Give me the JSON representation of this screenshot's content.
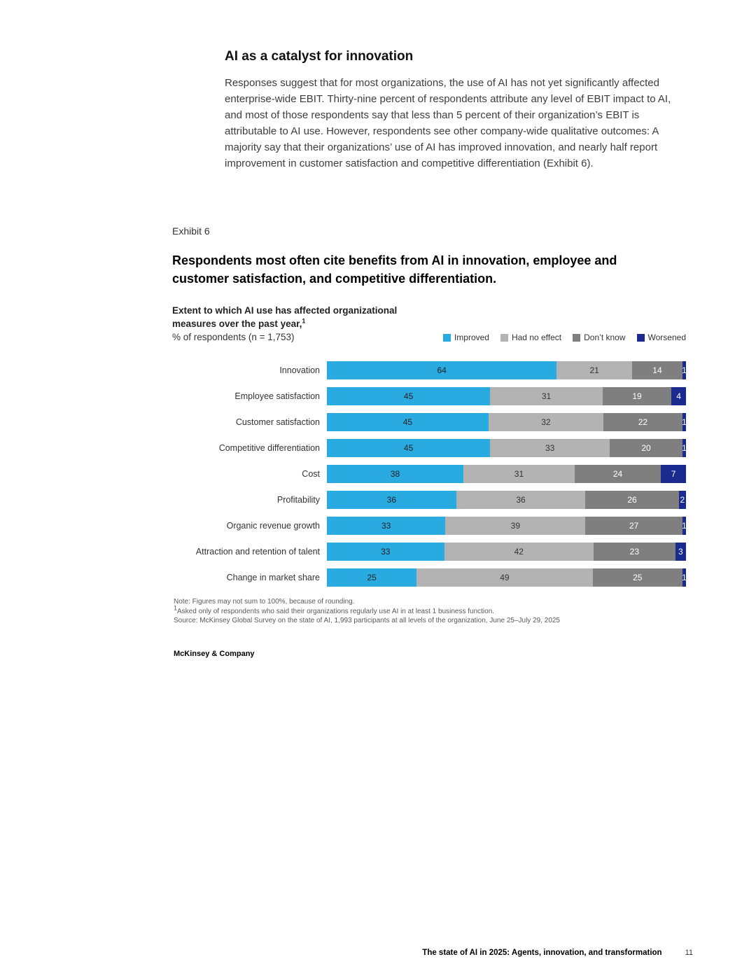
{
  "page": {
    "section_heading": "AI as a catalyst for innovation",
    "paragraph": "Responses suggest that for most organizations, the use of AI has not yet significantly affected enterprise-wide EBIT. Thirty-nine percent of respondents attribute any level of EBIT impact to AI, and most of those respondents say that less than 5 percent of their organization’s EBIT is attributable to AI use. However, respondents see other company-wide qualitative outcomes: A majority say that their organizations’ use of AI has improved innovation, and nearly half report improvement in customer satisfaction and competitive differentiation (Exhibit 6).",
    "footer": {
      "title": "The state of AI in 2025: Agents, innovation, and transformation",
      "page_number": "11"
    }
  },
  "exhibit": {
    "label": "Exhibit 6",
    "title": "Respondents most often cite benefits from AI in innovation, employee and customer satisfaction, and competitive differentiation.",
    "subtitle": "Extent to which AI use has affected organizational measures over the past year,",
    "subtitle_superscript": "1",
    "unit_line": "% of respondents (n = 1,753)",
    "note": "Note: Figures may not sum to 100%, because of rounding.",
    "footnote_superscript": "1",
    "footnote": "Asked only of respondents who said their organizations regularly use AI in at least 1 business function.",
    "source": "Source: McKinsey Global Survey on the state of AI, 1,993 participants at all levels of the organization, June 25–July 29, 2025",
    "brand": "McKinsey & Company"
  },
  "chart_data": {
    "type": "bar",
    "orientation": "horizontal",
    "stacked": true,
    "title": "Extent to which AI use has affected organizational measures over the past year",
    "unit": "% of respondents (n = 1,753)",
    "xlim": [
      0,
      100
    ],
    "legend_position": "top-right",
    "value_labels": true,
    "categories": [
      "Innovation",
      "Employee satisfaction",
      "Customer satisfaction",
      "Competitive differentiation",
      "Cost",
      "Profitability",
      "Organic revenue growth",
      "Attraction and retention of talent",
      "Change in market share"
    ],
    "series": [
      {
        "name": "Improved",
        "color": "#29ABE2",
        "label_color": "#222222",
        "values": [
          64,
          45,
          45,
          45,
          38,
          36,
          33,
          33,
          25
        ]
      },
      {
        "name": "Had no effect",
        "color": "#B3B3B3",
        "label_color": "#333333",
        "values": [
          21,
          31,
          32,
          33,
          31,
          36,
          39,
          42,
          49
        ]
      },
      {
        "name": "Don’t know",
        "color": "#7F7F7F",
        "label_color": "#ffffff",
        "values": [
          14,
          19,
          22,
          20,
          24,
          26,
          27,
          23,
          25
        ]
      },
      {
        "name": "Worsened",
        "color": "#1A2B8F",
        "label_color": "#ffffff",
        "values": [
          1,
          4,
          1,
          1,
          7,
          2,
          1,
          3,
          1
        ]
      }
    ]
  }
}
